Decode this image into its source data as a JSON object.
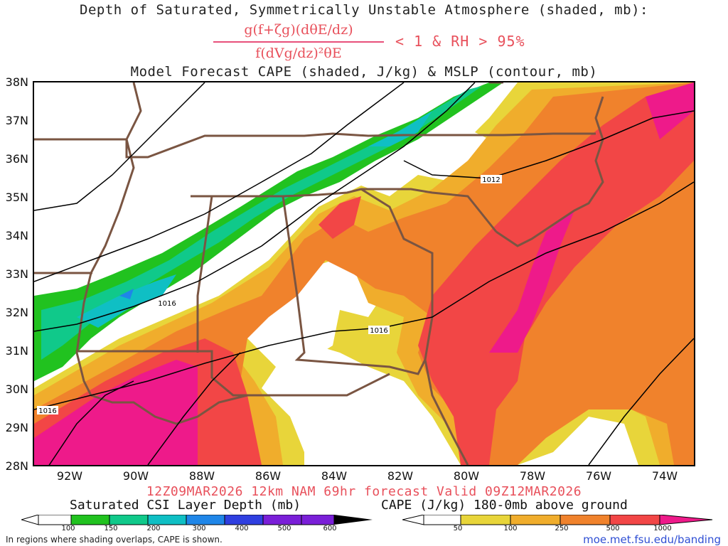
{
  "header": {
    "title_line1": "Depth of Saturated, Symmetrically Unstable Atmosphere (shaded, mb):",
    "fraction_numerator": "g(f+ζg)(dθE/dz)",
    "fraction_denominator": "f(dVg/dz)²θE",
    "criteria": "< 1 & RH > 95%",
    "title_line3": "Model Forecast CAPE (shaded, J/kg) & MSLP (contour, mb)"
  },
  "axes": {
    "lat_labels": [
      "38N",
      "37N",
      "36N",
      "35N",
      "34N",
      "33N",
      "32N",
      "31N",
      "30N",
      "29N",
      "28N"
    ],
    "lon_labels": [
      "92W",
      "90W",
      "88W",
      "86W",
      "84W",
      "82W",
      "80W",
      "78W",
      "76W",
      "74W"
    ]
  },
  "isobars": {
    "labels": [
      "1012",
      "1016",
      "1016",
      "1016"
    ]
  },
  "valid_line": "12Z09MAR2026 12km NAM 69hr forecast Valid 09Z12MAR2026",
  "colorbar_csi": {
    "title": "Saturated CSI Layer Depth (mb)",
    "ticks": [
      "100",
      "150",
      "200",
      "300",
      "400",
      "500",
      "600"
    ],
    "colors": [
      "#ffffff",
      "#21c21f",
      "#10c98a",
      "#0fbfc4",
      "#1f86e8",
      "#2f3fe0",
      "#7a1fd8",
      "#000000"
    ]
  },
  "colorbar_cape": {
    "title": "CAPE (J/kg) 180-0mb above ground",
    "ticks": [
      "50",
      "100",
      "250",
      "500",
      "1000"
    ],
    "colors": [
      "#ffffff",
      "#e8d53a",
      "#f0ad2c",
      "#f0822c",
      "#f24646",
      "#ee1a8a"
    ]
  },
  "footer": {
    "note": "In regions where shading overlaps, CAPE is shown.",
    "url": "moe.met.fsu.edu/banding"
  },
  "palette": {
    "title_red": "#e8505b",
    "boundary_brown": "#7a5542",
    "isobar": "#000000"
  }
}
